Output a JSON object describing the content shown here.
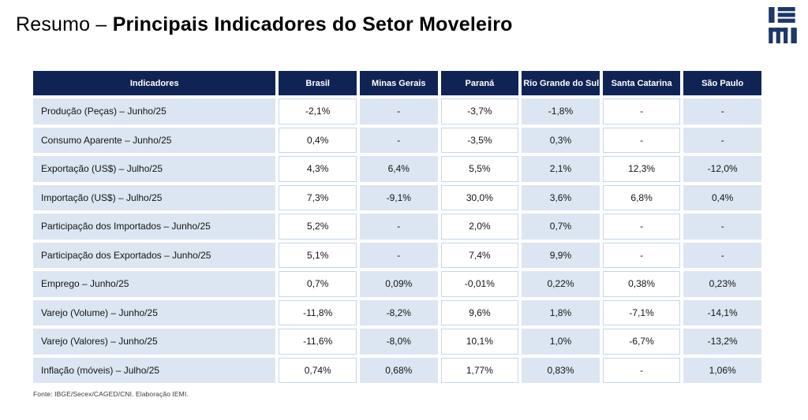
{
  "page": {
    "title_prefix": "Resumo – ",
    "title_main": "Principais Indicadores do Setor Moveleiro"
  },
  "logo": {
    "text": "IEMI",
    "color": "#1c3768"
  },
  "colors": {
    "header_bg": "#0f2455",
    "cell_blue": "#dce6f2",
    "cell_white": "#ffffff",
    "grid_line_on_white": "#c6d6ea",
    "header_text": "#ffffff"
  },
  "table": {
    "columns": [
      "Indicadores",
      "Brasil",
      "Minas Gerais",
      "Paraná",
      "Rio Grande do Sul",
      "Santa Catarina",
      "São Paulo"
    ],
    "rows": [
      {
        "label": "Produção (Peças) – Junho/25",
        "values": [
          "-2,1%",
          "-",
          "-3,7%",
          "-1,8%",
          "-",
          "-"
        ]
      },
      {
        "label": "Consumo Aparente – Junho/25",
        "values": [
          "0,4%",
          "-",
          "-3,5%",
          "0,3%",
          "-",
          "-"
        ]
      },
      {
        "label": "Exportação (US$) – Julho/25",
        "values": [
          "4,3%",
          "6,4%",
          "5,5%",
          "2,1%",
          "12,3%",
          "-12,0%"
        ]
      },
      {
        "label": "Importação (US$) – Julho/25",
        "values": [
          "7,3%",
          "-9,1%",
          "30,0%",
          "3,6%",
          "6,8%",
          "0,4%"
        ]
      },
      {
        "label": "Participação dos Importados – Junho/25",
        "values": [
          "5,2%",
          "-",
          "2,0%",
          "0,7%",
          "-",
          "-"
        ]
      },
      {
        "label": "Participação dos Exportados – Junho/25",
        "values": [
          "5,1%",
          "-",
          "7,4%",
          "9,9%",
          "-",
          "-"
        ]
      },
      {
        "label": "Emprego – Junho/25",
        "values": [
          "0,7%",
          "0,09%",
          "-0,01%",
          "0,22%",
          "0,38%",
          "0,23%"
        ]
      },
      {
        "label": "Varejo (Volume) – Junho/25",
        "values": [
          "-11,8%",
          "-8,2%",
          "9,6%",
          "1,8%",
          "-7,1%",
          "-14,1%"
        ]
      },
      {
        "label": "Varejo (Valores) – Junho/25",
        "values": [
          "-11,6%",
          "-8,0%",
          "10,1%",
          "1,0%",
          "-6,7%",
          "-13,2%"
        ]
      },
      {
        "label": "Inflação (móveis) – Julho/25",
        "values": [
          "0,74%",
          "0,68%",
          "1,77%",
          "0,83%",
          "-",
          "1,06%"
        ]
      }
    ],
    "footnote": "Fonte: IBGE/Secex/CAGED/CNI. Elaboração IEMI."
  }
}
